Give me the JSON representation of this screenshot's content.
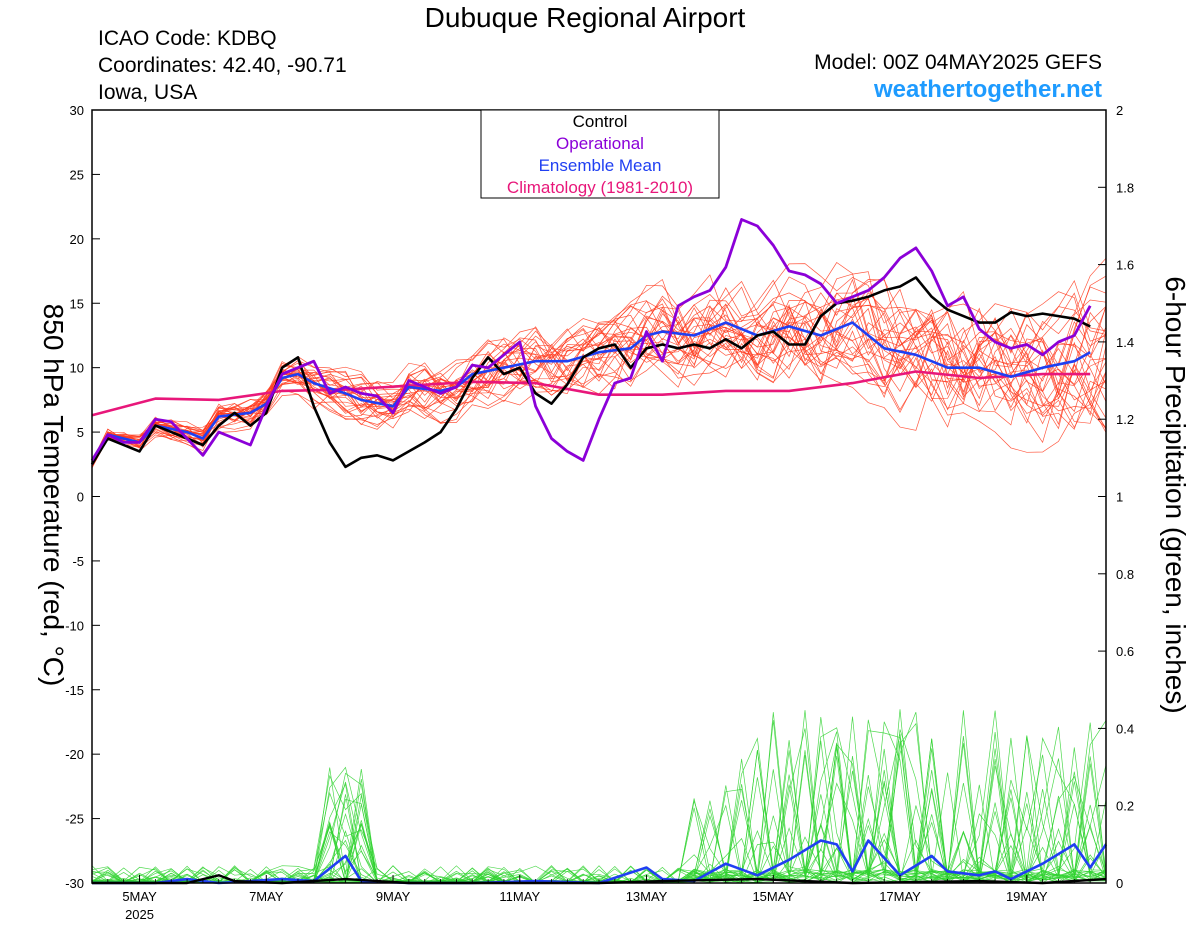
{
  "header": {
    "title": "Dubuque Regional Airport",
    "icao": "ICAO Code: KDBQ",
    "coords": "Coordinates: 42.40, -90.71",
    "location": "Iowa, USA",
    "model": "Model: 00Z 04MAY2025 GEFS",
    "site": "weathertogether.net"
  },
  "chart_data": {
    "type": "line",
    "title": "Dubuque Regional Airport",
    "ylabel": "850 hPa Temperature (red, °C)",
    "y2label": "6-hour Precipitation (green, inches)",
    "ylim": [
      -30,
      30
    ],
    "y2lim": [
      0,
      2
    ],
    "xlim": [
      0,
      16
    ],
    "x_ticks": [
      {
        "x": 0.75,
        "label": "5MAY",
        "sub": "2025"
      },
      {
        "x": 2.75,
        "label": "7MAY",
        "sub": ""
      },
      {
        "x": 4.75,
        "label": "9MAY",
        "sub": ""
      },
      {
        "x": 6.75,
        "label": "11MAY",
        "sub": ""
      },
      {
        "x": 8.75,
        "label": "13MAY",
        "sub": ""
      },
      {
        "x": 10.75,
        "label": "15MAY",
        "sub": ""
      },
      {
        "x": 12.75,
        "label": "17MAY",
        "sub": ""
      },
      {
        "x": 14.75,
        "label": "19MAY",
        "sub": ""
      }
    ],
    "y_ticks": [
      30,
      25,
      20,
      15,
      10,
      5,
      0,
      -5,
      -10,
      -15,
      -20,
      -25,
      -30
    ],
    "y2_ticks": [
      "2",
      "1.8",
      "1.6",
      "1.4",
      "1.2",
      "1",
      "0.8",
      "0.6",
      "0.4",
      "0.2",
      "0"
    ],
    "legend": {
      "position": "top-center",
      "entries": [
        {
          "label": "Control",
          "color": "#000000"
        },
        {
          "label": "Operational",
          "color": "#8b00d8"
        },
        {
          "label": "Ensemble Mean",
          "color": "#1f3ff2"
        },
        {
          "label": "Climatology (1981-2010)",
          "color": "#e8177a"
        }
      ]
    },
    "colors": {
      "control": "#000000",
      "operational": "#8b00d8",
      "mean": "#1f3ff2",
      "climatology": "#e8177a",
      "members_temp": "#ff3b1f",
      "members_precip": "#2fd22f"
    },
    "series": [
      {
        "key": "control",
        "axis": "temp",
        "points": [
          [
            0,
            2.5
          ],
          [
            0.25,
            4.5
          ],
          [
            0.75,
            3.5
          ],
          [
            1,
            5.5
          ],
          [
            1.5,
            4.5
          ],
          [
            1.75,
            4
          ],
          [
            2,
            5.5
          ],
          [
            2.25,
            6.5
          ],
          [
            2.5,
            5.5
          ],
          [
            2.75,
            6.5
          ],
          [
            3,
            10
          ],
          [
            3.25,
            10.8
          ],
          [
            3.5,
            7
          ],
          [
            3.75,
            4.2
          ],
          [
            4,
            2.3
          ],
          [
            4.25,
            3
          ],
          [
            4.5,
            3.2
          ],
          [
            4.75,
            2.8
          ],
          [
            5.25,
            4.2
          ],
          [
            5.5,
            5
          ],
          [
            5.75,
            6.8
          ],
          [
            6,
            9.2
          ],
          [
            6.25,
            10.8
          ],
          [
            6.5,
            9.5
          ],
          [
            6.75,
            10
          ],
          [
            7,
            8
          ],
          [
            7.25,
            7.2
          ],
          [
            7.5,
            8.7
          ],
          [
            7.75,
            10.8
          ],
          [
            8,
            11.5
          ],
          [
            8.25,
            11.8
          ],
          [
            8.5,
            10
          ],
          [
            8.75,
            11.5
          ],
          [
            9,
            11.8
          ],
          [
            9.25,
            11.5
          ],
          [
            9.5,
            11.8
          ],
          [
            9.75,
            11.5
          ],
          [
            10,
            12.2
          ],
          [
            10.25,
            11.5
          ],
          [
            10.5,
            12.5
          ],
          [
            10.75,
            12.8
          ],
          [
            11,
            11.8
          ],
          [
            11.25,
            11.8
          ],
          [
            11.5,
            14
          ],
          [
            11.75,
            15
          ],
          [
            12,
            15.2
          ],
          [
            12.25,
            15.5
          ],
          [
            12.5,
            16
          ],
          [
            12.75,
            16.3
          ],
          [
            13,
            17
          ],
          [
            13.25,
            15.5
          ],
          [
            13.5,
            14.5
          ],
          [
            13.75,
            14
          ],
          [
            14,
            13.5
          ],
          [
            14.25,
            13.5
          ],
          [
            14.5,
            14.3
          ],
          [
            14.75,
            14
          ],
          [
            15,
            14.2
          ],
          [
            15.25,
            14
          ],
          [
            15.5,
            13.8
          ],
          [
            15.75,
            13.2
          ]
        ]
      },
      {
        "key": "operational",
        "axis": "temp",
        "points": [
          [
            0,
            2.8
          ],
          [
            0.25,
            4.8
          ],
          [
            0.5,
            4.2
          ],
          [
            0.75,
            4.2
          ],
          [
            1,
            6
          ],
          [
            1.25,
            5.8
          ],
          [
            1.5,
            4.5
          ],
          [
            1.75,
            3.2
          ],
          [
            2,
            5
          ],
          [
            2.25,
            4.5
          ],
          [
            2.5,
            4
          ],
          [
            2.75,
            7
          ],
          [
            3,
            9.5
          ],
          [
            3.25,
            10
          ],
          [
            3.5,
            10.5
          ],
          [
            3.75,
            8
          ],
          [
            4,
            8.5
          ],
          [
            4.25,
            8
          ],
          [
            4.5,
            7.8
          ],
          [
            4.75,
            6.5
          ],
          [
            5,
            9
          ],
          [
            5.25,
            8.5
          ],
          [
            5.5,
            8
          ],
          [
            5.75,
            8.5
          ],
          [
            6,
            10.2
          ],
          [
            6.25,
            10
          ],
          [
            6.5,
            11
          ],
          [
            6.75,
            12
          ],
          [
            7,
            7
          ],
          [
            7.25,
            4.5
          ],
          [
            7.5,
            3.5
          ],
          [
            7.75,
            2.8
          ],
          [
            8,
            6
          ],
          [
            8.25,
            8.8
          ],
          [
            8.5,
            9.2
          ],
          [
            8.75,
            12.8
          ],
          [
            9,
            10.5
          ],
          [
            9.25,
            14.8
          ],
          [
            9.5,
            15.5
          ],
          [
            9.75,
            16
          ],
          [
            10,
            17.8
          ],
          [
            10.25,
            21.5
          ],
          [
            10.5,
            21
          ],
          [
            10.75,
            19.5
          ],
          [
            11,
            17.5
          ],
          [
            11.25,
            17.2
          ],
          [
            11.5,
            16.5
          ],
          [
            11.75,
            15
          ],
          [
            12,
            15.5
          ],
          [
            12.25,
            16
          ],
          [
            12.5,
            17
          ],
          [
            12.75,
            18.5
          ],
          [
            13,
            19.3
          ],
          [
            13.25,
            17.5
          ],
          [
            13.5,
            14.8
          ],
          [
            13.75,
            15.5
          ],
          [
            14,
            13
          ],
          [
            14.25,
            12
          ],
          [
            14.5,
            11.5
          ],
          [
            14.75,
            11.8
          ],
          [
            15,
            11
          ],
          [
            15.25,
            12
          ],
          [
            15.5,
            12.5
          ],
          [
            15.75,
            14.8
          ]
        ]
      },
      {
        "key": "mean",
        "axis": "temp",
        "points": [
          [
            0,
            2.5
          ],
          [
            0.25,
            4.8
          ],
          [
            0.75,
            4.2
          ],
          [
            1,
            5.5
          ],
          [
            1.5,
            5
          ],
          [
            1.75,
            4.5
          ],
          [
            2,
            6.2
          ],
          [
            2.5,
            6.5
          ],
          [
            2.75,
            7.2
          ],
          [
            3,
            9.2
          ],
          [
            3.25,
            9.5
          ],
          [
            3.5,
            8.8
          ],
          [
            4,
            8
          ],
          [
            4.25,
            7.5
          ],
          [
            4.75,
            7
          ],
          [
            5,
            8.5
          ],
          [
            5.5,
            8.2
          ],
          [
            5.75,
            8.5
          ],
          [
            6,
            9.5
          ],
          [
            6.5,
            10
          ],
          [
            7,
            10.5
          ],
          [
            7.5,
            10.5
          ],
          [
            8,
            11.2
          ],
          [
            8.5,
            11.5
          ],
          [
            8.75,
            12.5
          ],
          [
            9,
            12.8
          ],
          [
            9.5,
            12.5
          ],
          [
            10,
            13.5
          ],
          [
            10.5,
            12.5
          ],
          [
            11,
            13.2
          ],
          [
            11.5,
            12.5
          ],
          [
            12,
            13.5
          ],
          [
            12.5,
            11.5
          ],
          [
            13,
            11
          ],
          [
            13.5,
            10
          ],
          [
            14,
            10
          ],
          [
            14.5,
            9.3
          ],
          [
            15,
            10
          ],
          [
            15.5,
            10.5
          ],
          [
            15.75,
            11.2
          ]
        ]
      },
      {
        "key": "climatology",
        "axis": "temp",
        "points": [
          [
            0,
            6.3
          ],
          [
            1,
            7.6
          ],
          [
            2,
            7.5
          ],
          [
            3,
            8.2
          ],
          [
            4,
            8.3
          ],
          [
            5,
            8.6
          ],
          [
            6,
            8.9
          ],
          [
            7,
            8.8
          ],
          [
            8,
            7.9
          ],
          [
            9,
            7.9
          ],
          [
            10,
            8.2
          ],
          [
            11,
            8.2
          ],
          [
            12,
            8.8
          ],
          [
            13,
            9.7
          ],
          [
            14,
            9.2
          ],
          [
            15,
            9.5
          ],
          [
            15.75,
            9.5
          ]
        ]
      },
      {
        "key": "mean_precip",
        "axis": "precip",
        "points": [
          [
            0,
            0
          ],
          [
            1,
            0
          ],
          [
            1.5,
            0.01
          ],
          [
            2,
            0
          ],
          [
            3,
            0.01
          ],
          [
            3.5,
            0.005
          ],
          [
            4,
            0.07
          ],
          [
            4.25,
            0.005
          ],
          [
            5,
            0
          ],
          [
            6,
            0
          ],
          [
            7,
            0.005
          ],
          [
            8,
            0
          ],
          [
            8.75,
            0.04
          ],
          [
            9,
            0.01
          ],
          [
            9.5,
            0.005
          ],
          [
            10,
            0.05
          ],
          [
            10.5,
            0.02
          ],
          [
            11,
            0.06
          ],
          [
            11.5,
            0.11
          ],
          [
            11.75,
            0.1
          ],
          [
            12,
            0.03
          ],
          [
            12.25,
            0.11
          ],
          [
            12.75,
            0.02
          ],
          [
            13.25,
            0.07
          ],
          [
            13.5,
            0.03
          ],
          [
            14,
            0.02
          ],
          [
            14.25,
            0.03
          ],
          [
            14.5,
            0.01
          ],
          [
            15,
            0.05
          ],
          [
            15.5,
            0.1
          ],
          [
            15.75,
            0.04
          ],
          [
            16,
            0.1
          ]
        ]
      },
      {
        "key": "control_precip",
        "axis": "precip",
        "points": [
          [
            0,
            0
          ],
          [
            1.5,
            0
          ],
          [
            2,
            0.02
          ],
          [
            2.25,
            0.005
          ],
          [
            3,
            0
          ],
          [
            4,
            0.01
          ],
          [
            5,
            0
          ],
          [
            8,
            0
          ],
          [
            9,
            0.005
          ],
          [
            10.5,
            0.01
          ],
          [
            12,
            0
          ],
          [
            14,
            0.005
          ],
          [
            15,
            0
          ],
          [
            16,
            0.01
          ]
        ]
      }
    ]
  }
}
